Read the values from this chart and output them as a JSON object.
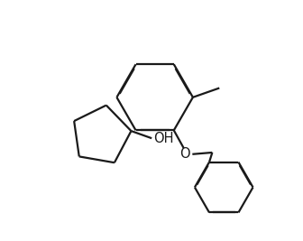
{
  "background_color": "#ffffff",
  "line_color": "#1a1a1a",
  "line_width": 1.6,
  "figsize": [
    3.36,
    2.67
  ],
  "dpi": 100,
  "OH_label": "OH",
  "O_label": "O",
  "font_size": 10.5
}
